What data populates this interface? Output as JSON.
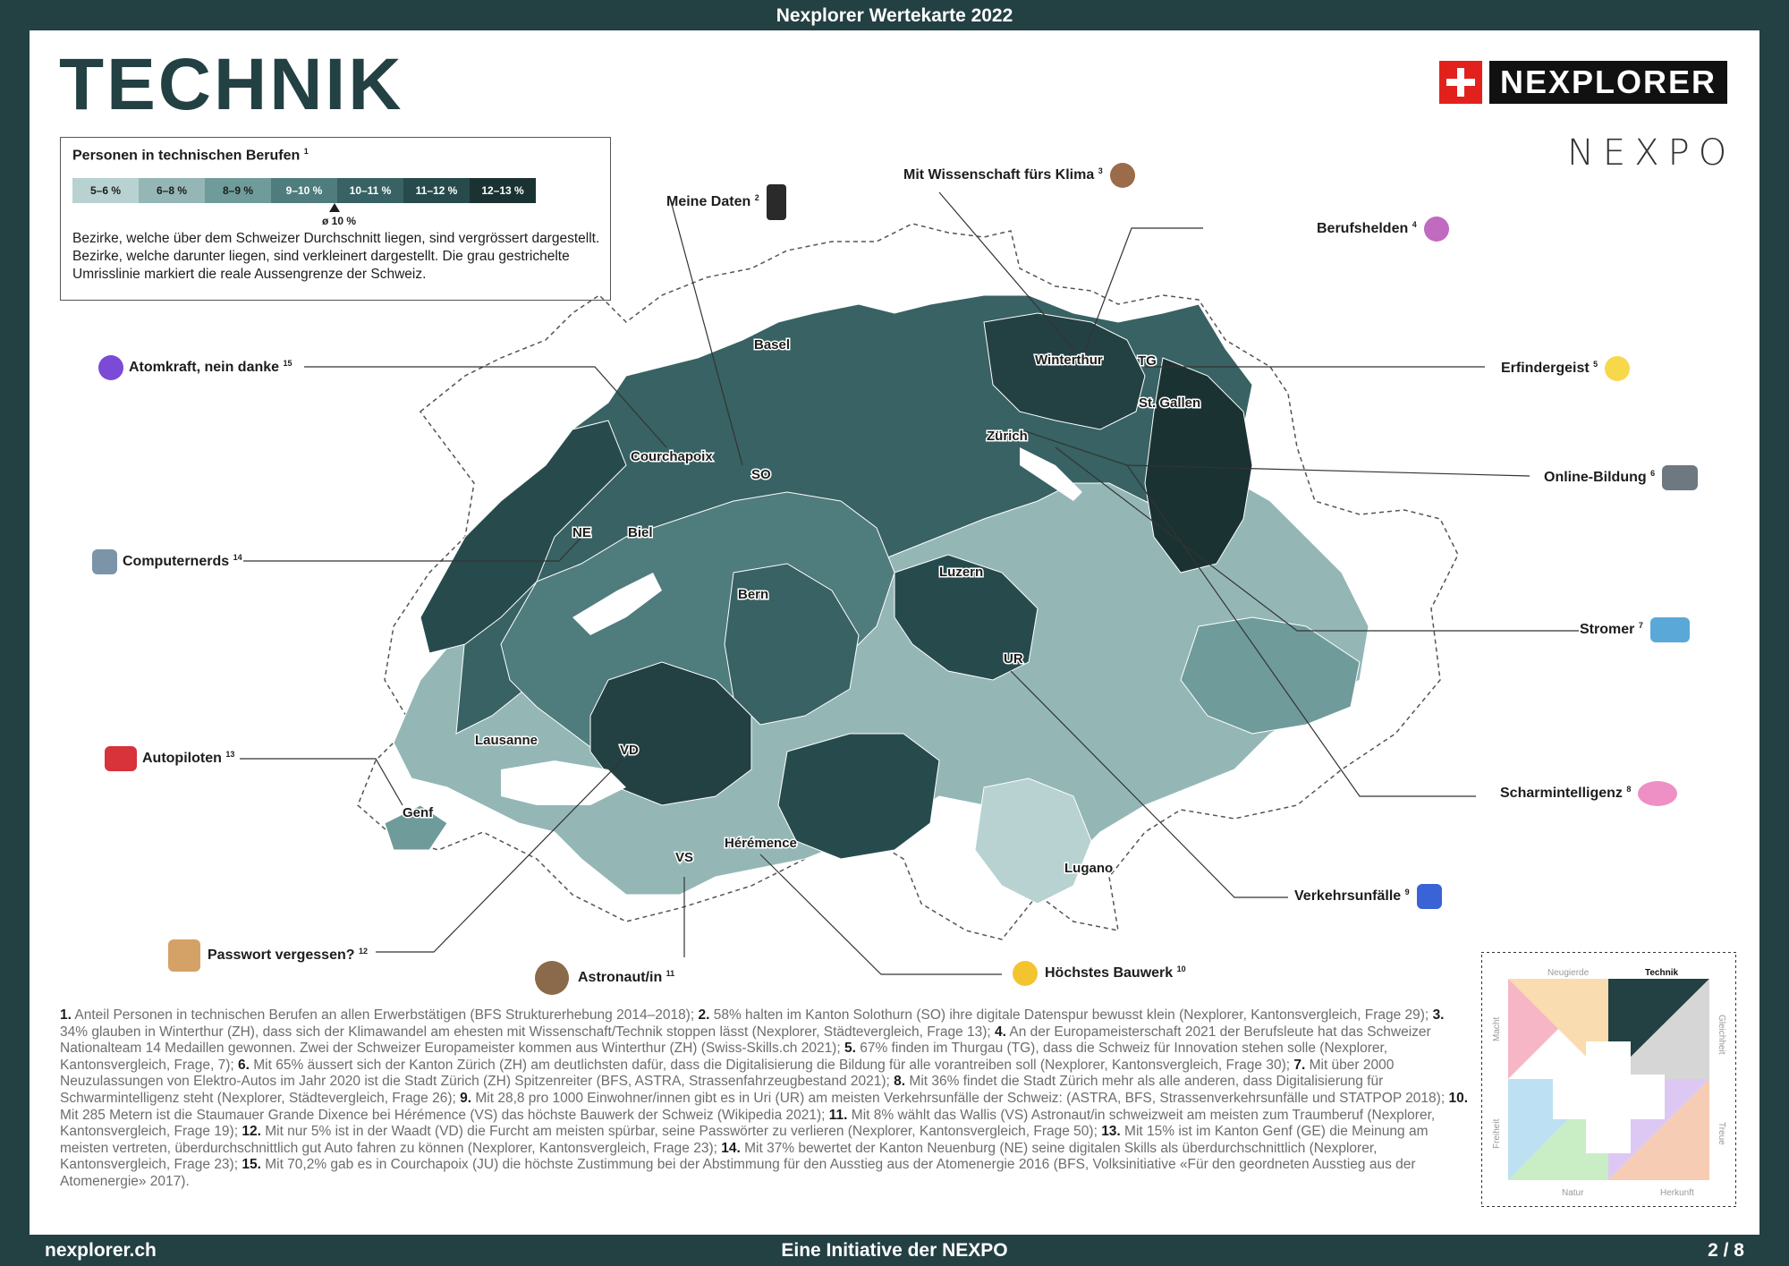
{
  "header": {
    "title": "Nexplorer Wertekarte 2022"
  },
  "page_title": "TECHNIK",
  "brand": {
    "name": "NEXPLORER",
    "secondary": "NEXPO"
  },
  "legend": {
    "title": "Personen in technischen Berufen",
    "title_ref": "1",
    "classes": [
      {
        "label": "5–6 %",
        "color": "#b7d2d1",
        "text": "#1d1d1b"
      },
      {
        "label": "6–8 %",
        "color": "#94b7b6",
        "text": "#1d1d1b"
      },
      {
        "label": "8–9 %",
        "color": "#6f9b9b",
        "text": "#1d1d1b"
      },
      {
        "label": "9–10 %",
        "color": "#4f7c7d",
        "text": "#ffffff"
      },
      {
        "label": "10–11 %",
        "color": "#386263",
        "text": "#ffffff"
      },
      {
        "label": "11–12 %",
        "color": "#274b4c",
        "text": "#ffffff"
      },
      {
        "label": "12–13 %",
        "color": "#1b3233",
        "text": "#ffffff"
      }
    ],
    "average_label": "ø 10 %",
    "description": "Bezirke, welche über dem Schweizer Durchschnitt liegen, sind vergrössert dargestellt. Bezirke, welche darunter liegen, sind verkleinert dargestellt. Die grau gestrichelte Umrisslinie markiert die reale Aussengrenze der Schweiz."
  },
  "cities": [
    "Basel",
    "Winterthur",
    "TG",
    "St. Gallen",
    "Zürich",
    "Courchapoix",
    "SO",
    "NE",
    "Biel",
    "Luzern",
    "Bern",
    "UR",
    "Lausanne",
    "VD",
    "Genf",
    "VS",
    "Hérémence",
    "Lugano"
  ],
  "callouts": [
    {
      "label": "Meine Daten",
      "ref": "2",
      "emoji": "mobile-phone",
      "color": "#2a2a2a"
    },
    {
      "label": "Mit Wissenschaft fürs Klima",
      "ref": "3",
      "emoji": "scientist",
      "color": "#9b6b4a"
    },
    {
      "label": "Berufshelden",
      "ref": "4",
      "emoji": "superhero",
      "color": "#c06ac0"
    },
    {
      "label": "Atomkraft, nein danke",
      "ref": "15",
      "emoji": "atom-symbol",
      "color": "#7b4ad6"
    },
    {
      "label": "Erfindergeist",
      "ref": "5",
      "emoji": "light-bulb",
      "color": "#f7d84a"
    },
    {
      "label": "Online-Bildung",
      "ref": "6",
      "emoji": "laptop",
      "color": "#6d7880"
    },
    {
      "label": "Computernerds",
      "ref": "14",
      "emoji": "technologist",
      "color": "#7c94a8"
    },
    {
      "label": "Stromer",
      "ref": "7",
      "emoji": "car",
      "color": "#5aa8d8"
    },
    {
      "label": "Autopiloten",
      "ref": "13",
      "emoji": "automobile",
      "color": "#d8323a"
    },
    {
      "label": "Scharmintelligenz",
      "ref": "8",
      "emoji": "brain",
      "color": "#ee8fc6"
    },
    {
      "label": "Verkehrsunfälle",
      "ref": "9",
      "emoji": "police-light",
      "color": "#3a63d6"
    },
    {
      "label": "Passwort vergessen?",
      "ref": "12",
      "emoji": "file-box",
      "color": "#d4a266"
    },
    {
      "label": "Astronaut/in",
      "ref": "11",
      "emoji": "astronaut",
      "color": "#8a6a4a"
    },
    {
      "label": "Höchstes Bauwerk",
      "ref": "10",
      "emoji": "construction-worker",
      "color": "#f4c430"
    }
  ],
  "footnotes": [
    {
      "n": "1.",
      "text": " Anteil Personen in technischen Berufen an allen Erwerbstätigen (BFS Strukturerhebung 2014–2018); "
    },
    {
      "n": "2.",
      "text": " 58% halten im Kanton Solothurn (SO) ihre digitale Datenspur bewusst klein (Nexplorer, Kantonsvergleich, Frage 29); "
    },
    {
      "n": "3.",
      "text": " 34% glauben in Winterthur (ZH), dass sich der Klimawandel am ehesten mit Wissenschaft/Technik stoppen lässt (Nexplorer, Städtevergleich, Frage 13); "
    },
    {
      "n": "4.",
      "text": " An der Europameisterschaft 2021 der Berufsleute hat das Schweizer Nationalteam 14 Medaillen gewonnen. Zwei der Schweizer Europameister kommen aus Winterthur (ZH) (Swiss-Skills.ch 2021); "
    },
    {
      "n": "5.",
      "text": " 67% finden im Thurgau (TG), dass die Schweiz für Innovation stehen solle (Nexplorer, Kantonsvergleich, Frage, 7); "
    },
    {
      "n": "6.",
      "text": " Mit 65% äussert sich der Kanton Zürich (ZH) am deutlichsten dafür, dass die Digitalisierung die Bildung für alle vorantreiben soll (Nexplorer, Kantonsvergleich, Frage 30); "
    },
    {
      "n": "7.",
      "text": " Mit über 2000 Neuzulassungen von Elektro-Autos im Jahr 2020 ist die Stadt Zürich (ZH) Spitzenreiter (BFS, ASTRA, Strassenfahrzeugbestand 2021); "
    },
    {
      "n": "8.",
      "text": " Mit 36% findet die Stadt Zürich mehr als alle anderen, dass Digitalisierung für Schwarmintelligenz steht (Nexplorer, Städtevergleich, Frage 26); "
    },
    {
      "n": "9.",
      "text": " Mit 28,8 pro 1000 Einwohner/innen gibt es in Uri (UR) am meisten Verkehrsunfälle der Schweiz: (ASTRA, BFS, Strassenverkehrsun­fälle und STATPOP 2018); "
    },
    {
      "n": "10.",
      "text": " Mit 285 Metern ist die Staumauer Grande Dixence bei Hérémence (VS) das höchste Bauwerk der Schweiz (Wikipedia 2021); "
    },
    {
      "n": "11.",
      "text": " Mit 8% wählt das Wallis (VS) Astronaut/in schweizweit am meisten zum Traumberuf (Nexplorer, Kantonsvergleich, Frage 19); "
    },
    {
      "n": "12.",
      "text": " Mit nur 5% ist in der Waadt (VD) die Furcht am meisten spürbar, seine Passwörter zu verlieren (Nexplorer, Kantonsvergleich, Frage 50); "
    },
    {
      "n": "13.",
      "text": " Mit 15% ist im Kanton Genf (GE) die Meinung am meisten vertreten, überdurchschnittlich gut Auto fahren zu können (Nexplorer, Kantonsvergleich, Frage 23); "
    },
    {
      "n": "14.",
      "text": " Mit 37% bewertet der Kanton Neuenburg (NE) seine digitalen Skills als überdurchschnittlich (Nexplorer, Kantonsvergleich, Frage 23); "
    },
    {
      "n": "15.",
      "text": " Mit 70,2% gab es in Courchapoix (JU) die höchste Zustimmung bei der Abstimmung für den Ausstieg aus der Atomenergie 2016 (BFS, Volksinitiative «Für den geordneten Ausstieg aus der Atomenergie» 2017)."
    }
  ],
  "value_map": {
    "labels": {
      "top_left": "Neugierde",
      "top_right": "Technik",
      "bottom_left": "Natur",
      "bottom_right": "Herkunft",
      "left_top": "Macht",
      "left_bottom": "Freiheit",
      "right_top": "Gleichheit",
      "right_bottom": "Treue"
    },
    "colors": {
      "pink": "#f6b6c6",
      "peach": "#f9dcb0",
      "dark": "#234043",
      "grey": "#d6d6d6",
      "blue": "#bde0f2",
      "green": "#c9eec6",
      "salmon": "#f7ccb4",
      "purple": "#dcc8f2"
    }
  },
  "footer": {
    "url": "nexplorer.ch",
    "initiative": "Eine Initiative der NEXPO",
    "page": "2 / 8"
  }
}
